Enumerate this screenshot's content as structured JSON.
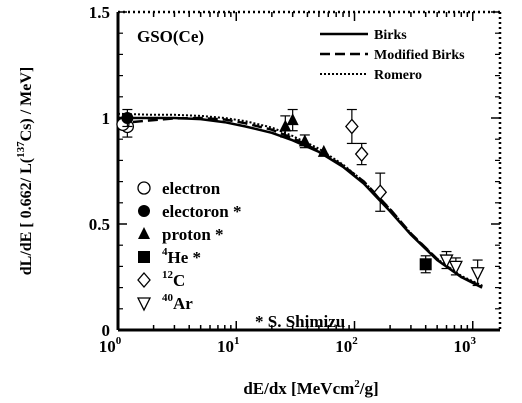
{
  "chart_data": {
    "type": "scatter",
    "xscale": "log",
    "xlim": [
      1,
      1700
    ],
    "ylim": [
      0,
      1.5
    ],
    "x_ticks": [
      1,
      10,
      100,
      1000
    ],
    "x_tick_labels": [
      {
        "base": "10",
        "exp": "0"
      },
      {
        "base": "10",
        "exp": "1"
      },
      {
        "base": "10",
        "exp": "2"
      },
      {
        "base": "10",
        "exp": "3"
      }
    ],
    "y_ticks": [
      0,
      0.5,
      1,
      1.5
    ],
    "y_tick_labels": [
      "0",
      "0.5",
      "1",
      "1.5"
    ],
    "xlabel": {
      "pre": "dE/dx [MeVcm",
      "sup": "2",
      "post": "/g]"
    },
    "ylabel": {
      "pre": "dL/dE [ 0.662/ L(",
      "sup": "137",
      "post": "Cs) / MeV]"
    },
    "panel_label": "GSO(Ce)",
    "footnote": "* S. Shimizu",
    "curves": [
      {
        "name": "Birks",
        "style": "solid",
        "x": [
          1,
          2,
          3,
          5,
          8,
          12,
          20,
          30,
          50,
          80,
          120,
          200,
          300,
          500,
          800,
          1200
        ],
        "y": [
          1.0,
          1.0,
          1.0,
          0.995,
          0.98,
          0.96,
          0.93,
          0.895,
          0.84,
          0.77,
          0.69,
          0.56,
          0.45,
          0.33,
          0.25,
          0.2
        ]
      },
      {
        "name": "Modified Birks",
        "style": "dashed",
        "x": [
          1,
          2,
          3,
          5,
          8,
          12,
          20,
          30,
          50,
          80,
          120,
          200,
          300,
          500,
          800,
          1200
        ],
        "y": [
          0.975,
          0.99,
          0.998,
          1.0,
          0.993,
          0.975,
          0.945,
          0.905,
          0.845,
          0.775,
          0.7,
          0.57,
          0.455,
          0.335,
          0.25,
          0.205
        ]
      },
      {
        "name": "Romero",
        "style": "dotted",
        "x": [
          1,
          2,
          3,
          5,
          8,
          12,
          20,
          30,
          50,
          80,
          120,
          200,
          300,
          500,
          800,
          1200
        ],
        "y": [
          1.02,
          1.015,
          1.015,
          1.01,
          1.0,
          0.985,
          0.955,
          0.915,
          0.855,
          0.78,
          0.7,
          0.57,
          0.455,
          0.335,
          0.255,
          0.21
        ]
      }
    ],
    "series": [
      {
        "name": "electron",
        "marker": "circle-open",
        "points": [
          {
            "x": 1.2,
            "y": 0.96,
            "err": 0.05
          },
          {
            "x": 1.1,
            "y": 0.97,
            "err": 0.0
          }
        ]
      },
      {
        "name": "electoron *",
        "marker": "circle-filled",
        "points": [
          {
            "x": 1.2,
            "y": 1.0,
            "err": 0.04
          }
        ]
      },
      {
        "name": "proton *",
        "marker": "triangle-filled",
        "points": [
          {
            "x": 26,
            "y": 0.96,
            "err": 0.05
          },
          {
            "x": 30,
            "y": 0.99,
            "err": 0.05
          },
          {
            "x": 38,
            "y": 0.89,
            "err": 0.03
          },
          {
            "x": 55,
            "y": 0.84,
            "err": 0.0
          }
        ]
      },
      {
        "name": "He *",
        "label_pre": "4",
        "label_main": "He *",
        "marker": "square-filled",
        "points": [
          {
            "x": 400,
            "y": 0.31,
            "err": 0.04
          }
        ]
      },
      {
        "name": "C",
        "label_pre": "12",
        "label_main": "C",
        "marker": "diamond-open",
        "points": [
          {
            "x": 95,
            "y": 0.96,
            "err": 0.08
          },
          {
            "x": 115,
            "y": 0.83,
            "err": 0.05
          },
          {
            "x": 165,
            "y": 0.65,
            "err": 0.09
          }
        ]
      },
      {
        "name": "Ar",
        "label_pre": "40",
        "label_main": "Ar",
        "marker": "triangle-down-open",
        "points": [
          {
            "x": 600,
            "y": 0.33,
            "err": 0.04
          },
          {
            "x": 720,
            "y": 0.3,
            "err": 0.04
          },
          {
            "x": 1100,
            "y": 0.27,
            "err": 0.06
          }
        ]
      }
    ],
    "legend_lines_position": "top-right",
    "legend_markers_position": "bottom-left"
  }
}
